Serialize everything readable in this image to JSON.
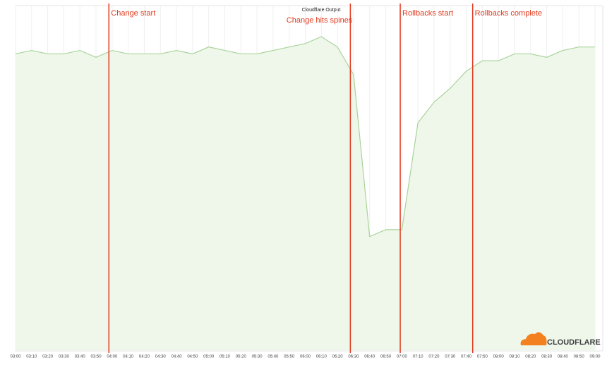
{
  "chart_data": {
    "type": "area",
    "title": "Cloudflare Output",
    "categories": [
      "03:00",
      "03:10",
      "03:20",
      "03:30",
      "03:40",
      "03:50",
      "04:00",
      "04:10",
      "04:20",
      "04:30",
      "04:40",
      "04:50",
      "05:00",
      "05:10",
      "05:20",
      "05:30",
      "05:40",
      "05:50",
      "06:00",
      "06:10",
      "06:20",
      "06:30",
      "06:40",
      "06:50",
      "07:00",
      "07:10",
      "07:20",
      "07:30",
      "07:40",
      "07:50",
      "08:00",
      "08:10",
      "08:20",
      "08:30",
      "08:40",
      "08:50",
      "09:00"
    ],
    "series": [
      {
        "name": "Cloudflare Output",
        "color": "#a9d39a",
        "values": [
          86,
          87,
          86,
          86,
          87,
          85,
          87,
          86,
          86,
          86,
          87,
          86,
          88,
          87,
          86,
          86,
          87,
          88,
          89,
          91,
          88,
          80,
          33,
          35,
          35,
          66,
          72,
          76,
          81,
          84,
          84,
          86,
          86,
          85,
          87,
          88,
          88
        ]
      }
    ],
    "ylim": [
      0,
      100
    ],
    "grid": true,
    "annotations": [
      {
        "text": "Change start",
        "x": "03:58",
        "color": "#e03a1e"
      },
      {
        "text": "Change hits spines",
        "x": "06:28",
        "color": "#e03a1e"
      },
      {
        "text": "Rollbacks start",
        "x": "06:59",
        "color": "#e03a1e"
      },
      {
        "text": "Rollbacks complete",
        "x": "07:44",
        "color": "#e03a1e"
      }
    ],
    "logo": "CLOUDFLARE"
  }
}
